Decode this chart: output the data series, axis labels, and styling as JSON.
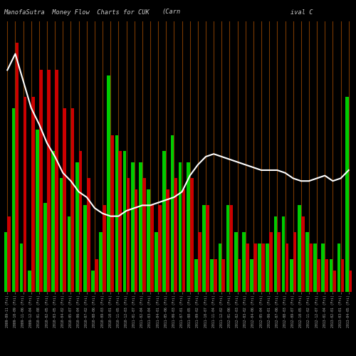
{
  "title_left": "ManofaSutra  Money Flow  Charts for CUK",
  "title_mid": "(Carn",
  "title_right": "ival C",
  "bg_color": "#000000",
  "bar_color_up": "#00cc00",
  "bar_color_down": "#cc0000",
  "grid_color": "#7a3800",
  "line_color": "#ffffff",
  "dates": [
    "2009-09-11 (Fri)",
    "2009-10-09 (Fri)",
    "2009-11-06 (Fri)",
    "2009-12-04 (Fri)",
    "2010-01-08 (Fri)",
    "2010-02-05 (Fri)",
    "2010-03-05 (Fri)",
    "2010-04-02 (Fri)",
    "2010-05-07 (Fri)",
    "2010-06-04 (Fri)",
    "2010-07-02 (Fri)",
    "2010-08-06 (Fri)",
    "2010-09-03 (Fri)",
    "2010-10-01 (Fri)",
    "2010-11-05 (Fri)",
    "2010-12-03 (Fri)",
    "2011-01-07 (Fri)",
    "2011-02-04 (Fri)",
    "2011-03-04 (Fri)",
    "2011-04-01 (Fri)",
    "2011-05-06 (Fri)",
    "2011-06-03 (Fri)",
    "2011-07-01 (Fri)",
    "2011-08-05 (Fri)",
    "2011-09-02 (Fri)",
    "2011-10-07 (Fri)",
    "2011-11-04 (Fri)",
    "2011-12-02 (Fri)",
    "2012-01-06 (Fri)",
    "2012-02-03 (Fri)",
    "2012-03-02 (Fri)",
    "2012-04-06 (Fri)",
    "2012-05-04 (Fri)",
    "2012-06-01 (Fri)",
    "2012-07-06 (Fri)",
    "2012-08-03 (Fri)",
    "2012-09-07 (Fri)",
    "2012-10-05 (Fri)",
    "2012-11-02 (Fri)",
    "2012-12-07 (Fri)",
    "2013-01-04 (Fri)",
    "2013-02-01 (Fri)",
    "2013-03-01 (Fri)",
    "2013-04-05 (Fri)"
  ],
  "green_bars": [
    22,
    68,
    18,
    8,
    60,
    33,
    52,
    42,
    28,
    48,
    32,
    8,
    22,
    80,
    58,
    52,
    48,
    48,
    38,
    22,
    52,
    58,
    48,
    48,
    12,
    32,
    12,
    18,
    32,
    22,
    22,
    12,
    18,
    18,
    28,
    28,
    12,
    32,
    22,
    18,
    18,
    12,
    18,
    72
  ],
  "red_bars": [
    28,
    92,
    72,
    72,
    82,
    82,
    82,
    68,
    68,
    52,
    42,
    12,
    32,
    58,
    52,
    42,
    38,
    42,
    32,
    32,
    38,
    42,
    38,
    42,
    22,
    32,
    12,
    12,
    32,
    12,
    18,
    18,
    18,
    22,
    22,
    18,
    22,
    28,
    18,
    12,
    12,
    8,
    12,
    8
  ],
  "price_line": [
    82,
    88,
    78,
    68,
    62,
    55,
    50,
    44,
    41,
    37,
    35,
    31,
    29,
    28,
    28,
    30,
    31,
    32,
    32,
    33,
    34,
    35,
    37,
    43,
    47,
    50,
    51,
    50,
    49,
    48,
    47,
    46,
    45,
    45,
    45,
    44,
    42,
    41,
    41,
    42,
    43,
    41,
    42,
    45
  ]
}
